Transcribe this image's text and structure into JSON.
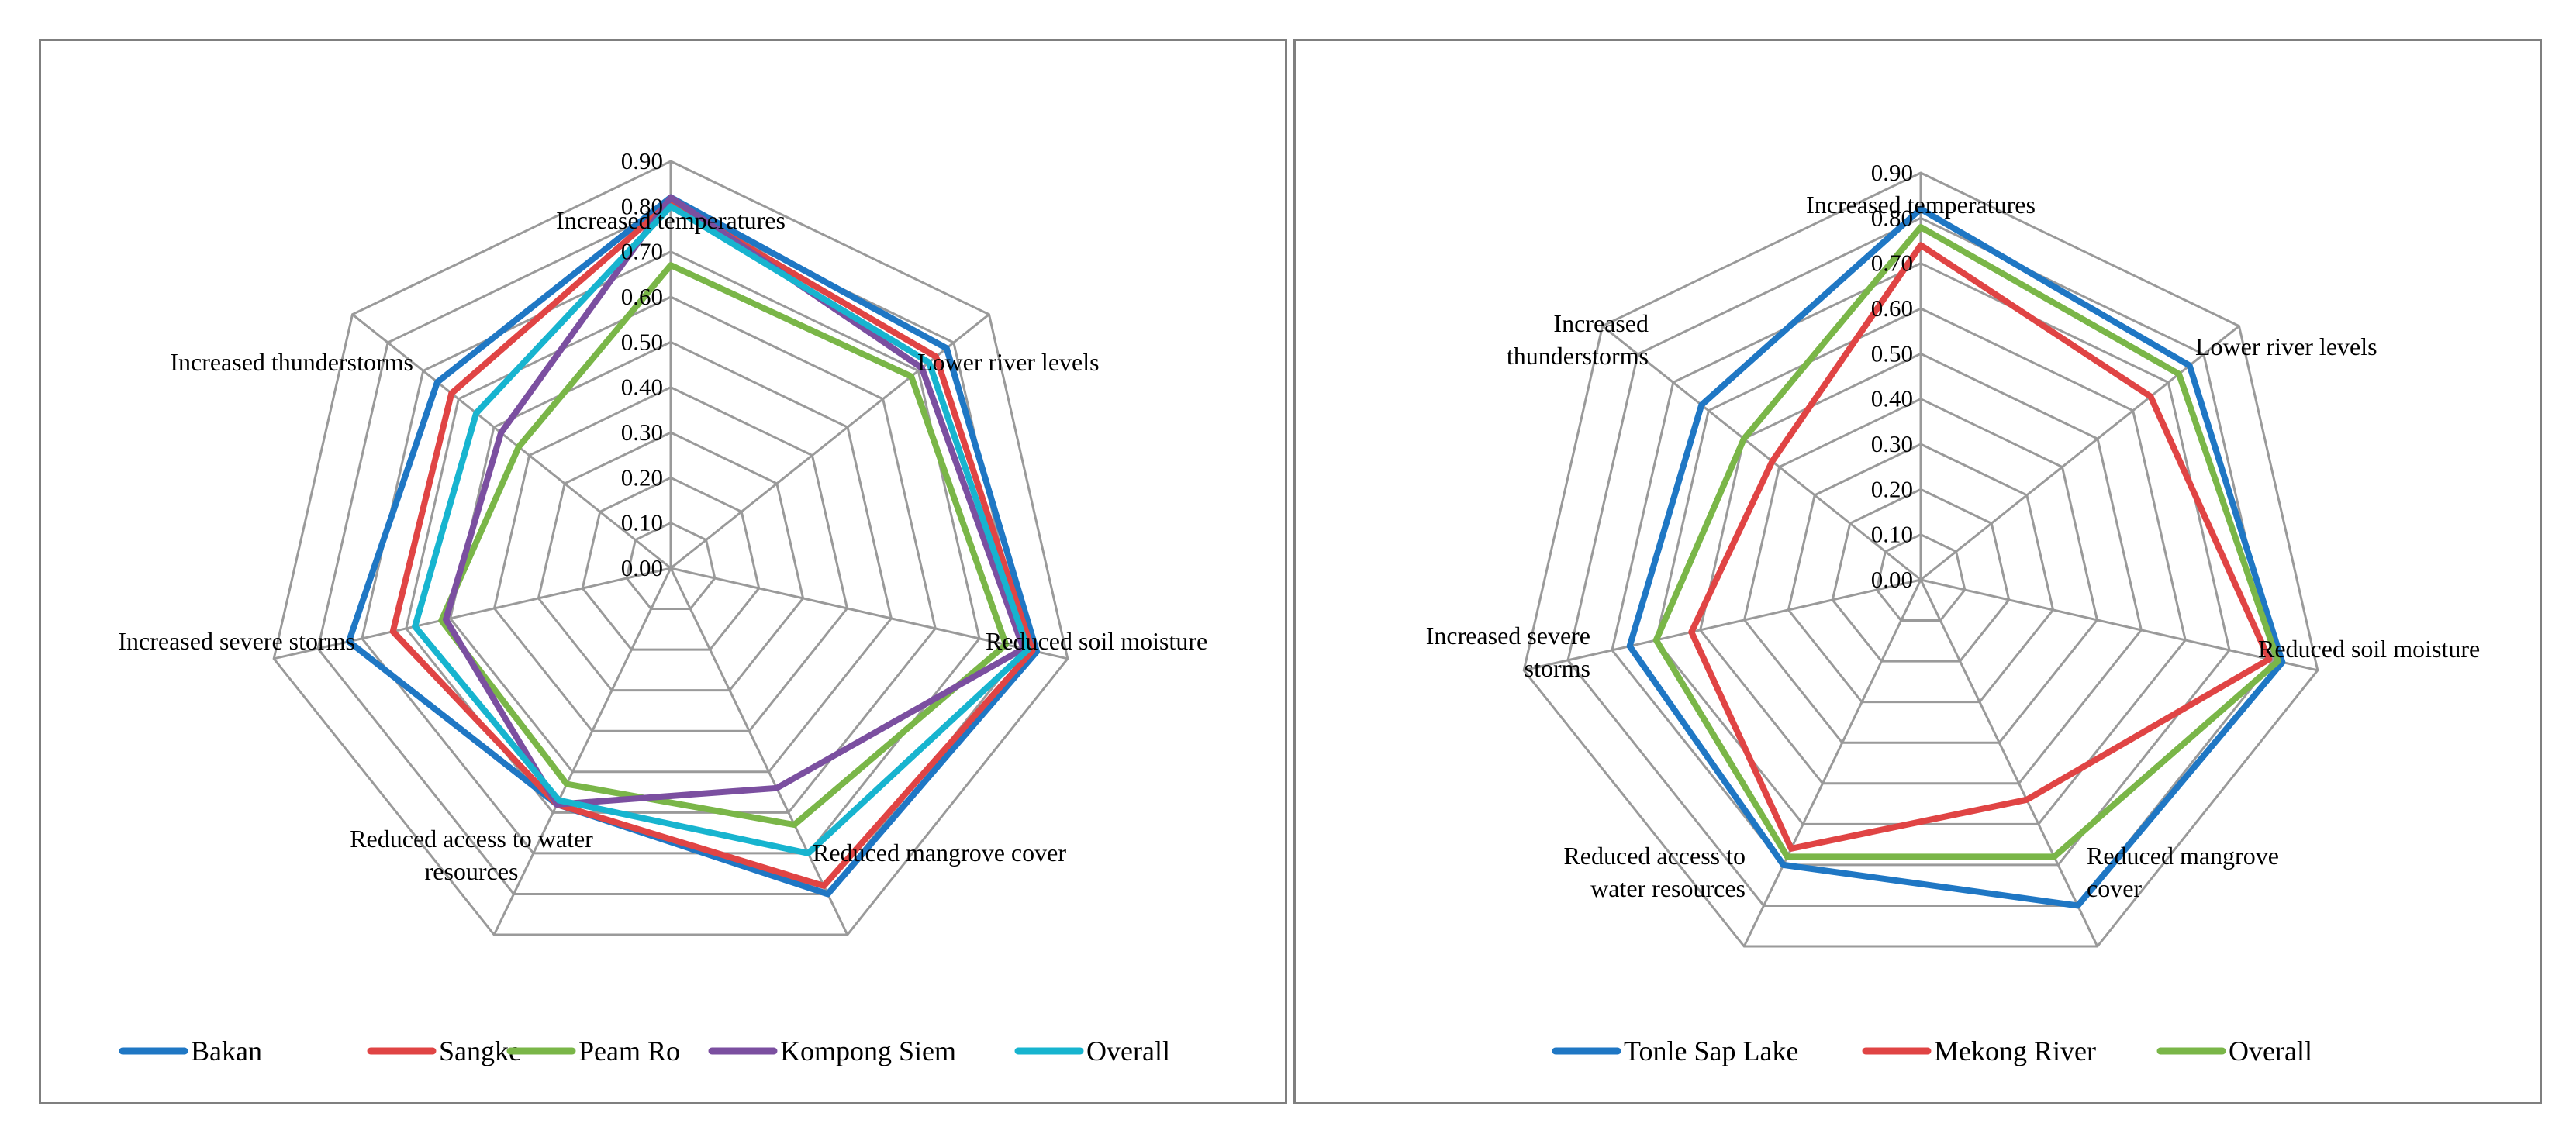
{
  "chart_data": [
    {
      "type": "radar",
      "title": "",
      "axes": [
        "Increased temperatures",
        "Lower river levels",
        "Reduced soil moisture",
        "Reduced mangrove cover",
        "Reduced access to water resources",
        "Increased severe storms",
        "Increased thunderstorms"
      ],
      "axis_label_lines": [
        [
          "Increased temperatures"
        ],
        [
          "Lower river levels"
        ],
        [
          "Reduced soil moisture"
        ],
        [
          "Reduced mangrove cover"
        ],
        [
          "Reduced access to water",
          "resources"
        ],
        [
          "Increased severe storms"
        ],
        [
          "Increased thunderstorms"
        ]
      ],
      "ticks": [
        "0.00",
        "0.10",
        "0.20",
        "0.30",
        "0.40",
        "0.50",
        "0.60",
        "0.70",
        "0.80",
        "0.90"
      ],
      "rmax": 0.9,
      "series": [
        {
          "name": "Bakan",
          "color": "#1f77c4",
          "values": [
            0.82,
            0.78,
            0.83,
            0.8,
            0.58,
            0.73,
            0.66
          ]
        },
        {
          "name": "Sangke",
          "color": "#e04444",
          "values": [
            0.81,
            0.75,
            0.82,
            0.78,
            0.58,
            0.63,
            0.62
          ]
        },
        {
          "name": "Peam Ro",
          "color": "#7ab648",
          "values": [
            0.67,
            0.68,
            0.76,
            0.63,
            0.53,
            0.52,
            0.43
          ]
        },
        {
          "name": "Kompong Siem",
          "color": "#7b4fa0",
          "values": [
            0.82,
            0.71,
            0.8,
            0.54,
            0.58,
            0.51,
            0.48
          ]
        },
        {
          "name": "Overall",
          "color": "#17b4cf",
          "values": [
            0.8,
            0.73,
            0.81,
            0.7,
            0.57,
            0.58,
            0.55
          ]
        }
      ]
    },
    {
      "type": "radar",
      "title": "",
      "axes": [
        "Increased temperatures",
        "Lower river levels",
        "Reduced soil moisture",
        "Reduced mangrove cover",
        "Reduced access to water resources",
        "Increased severe storms",
        "Increased thunderstorms"
      ],
      "axis_label_lines": [
        [
          "Increased temperatures"
        ],
        [
          "Lower river levels"
        ],
        [
          "Reduced soil moisture"
        ],
        [
          "Reduced mangrove",
          "cover"
        ],
        [
          "Reduced access to",
          "water resources"
        ],
        [
          "Increased severe",
          "storms"
        ],
        [
          "Increased",
          "thunderstorms"
        ]
      ],
      "ticks": [
        "0.00",
        "0.10",
        "0.20",
        "0.30",
        "0.40",
        "0.50",
        "0.60",
        "0.70",
        "0.80",
        "0.90"
      ],
      "rmax": 0.9,
      "series": [
        {
          "name": "Tonle Sap Lake",
          "color": "#1f77c4",
          "values": [
            0.82,
            0.76,
            0.82,
            0.8,
            0.7,
            0.66,
            0.62
          ]
        },
        {
          "name": "Mekong River",
          "color": "#e04444",
          "values": [
            0.74,
            0.65,
            0.79,
            0.54,
            0.66,
            0.52,
            0.42
          ]
        },
        {
          "name": "Overall",
          "color": "#7ab648",
          "values": [
            0.78,
            0.73,
            0.81,
            0.68,
            0.68,
            0.6,
            0.5
          ]
        }
      ]
    }
  ]
}
